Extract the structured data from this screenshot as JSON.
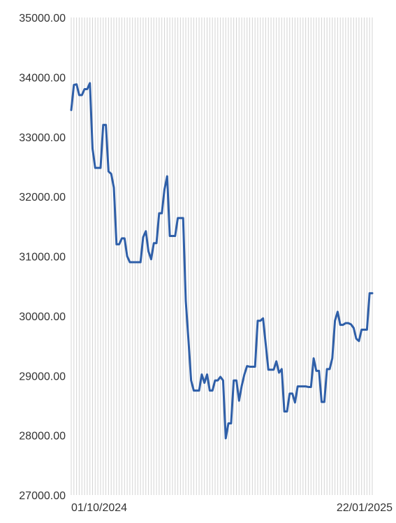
{
  "chart_data": {
    "type": "line",
    "title": "",
    "xlabel": "",
    "ylabel": "",
    "ylim": [
      27000,
      35000
    ],
    "y_ticks": [
      "27000.00",
      "28000.00",
      "29000.00",
      "30000.00",
      "31000.00",
      "32000.00",
      "33000.00",
      "34000.00",
      "35000.00"
    ],
    "x_tick_labels": [
      "01/10/2024",
      "22/01/2025"
    ],
    "grid": "vertical",
    "colors": {
      "line": "#2f5fa8",
      "grid": "#d4d4d4",
      "text": "#333333"
    },
    "series": [
      {
        "values": [
          33450,
          33870,
          33880,
          33700,
          33700,
          33800,
          33800,
          33900,
          32800,
          32480,
          32480,
          32480,
          33200,
          33200,
          32420,
          32380,
          32150,
          31200,
          31200,
          31300,
          31300,
          31000,
          30900,
          30900,
          30900,
          30900,
          30900,
          31320,
          31420,
          31080,
          30950,
          31220,
          31220,
          31720,
          31720,
          32120,
          32340,
          31340,
          31340,
          31340,
          31640,
          31640,
          31640,
          30250,
          29600,
          28920,
          28750,
          28750,
          28750,
          29020,
          28880,
          29020,
          28750,
          28750,
          28920,
          28920,
          28980,
          28920,
          27950,
          28200,
          28200,
          28920,
          28920,
          28580,
          28830,
          29020,
          29160,
          29150,
          29150,
          29150,
          29920,
          29920,
          29960,
          29530,
          29100,
          29100,
          29100,
          29240,
          29050,
          29110,
          28400,
          28400,
          28700,
          28700,
          28550,
          28820,
          28820,
          28820,
          28820,
          28810,
          28810,
          29290,
          29080,
          29080,
          28560,
          28560,
          29110,
          29110,
          29290,
          29920,
          30070,
          29850,
          29850,
          29880,
          29880,
          29860,
          29800,
          29620,
          29580,
          29770,
          29770,
          29770,
          30380,
          30380
        ]
      }
    ]
  }
}
